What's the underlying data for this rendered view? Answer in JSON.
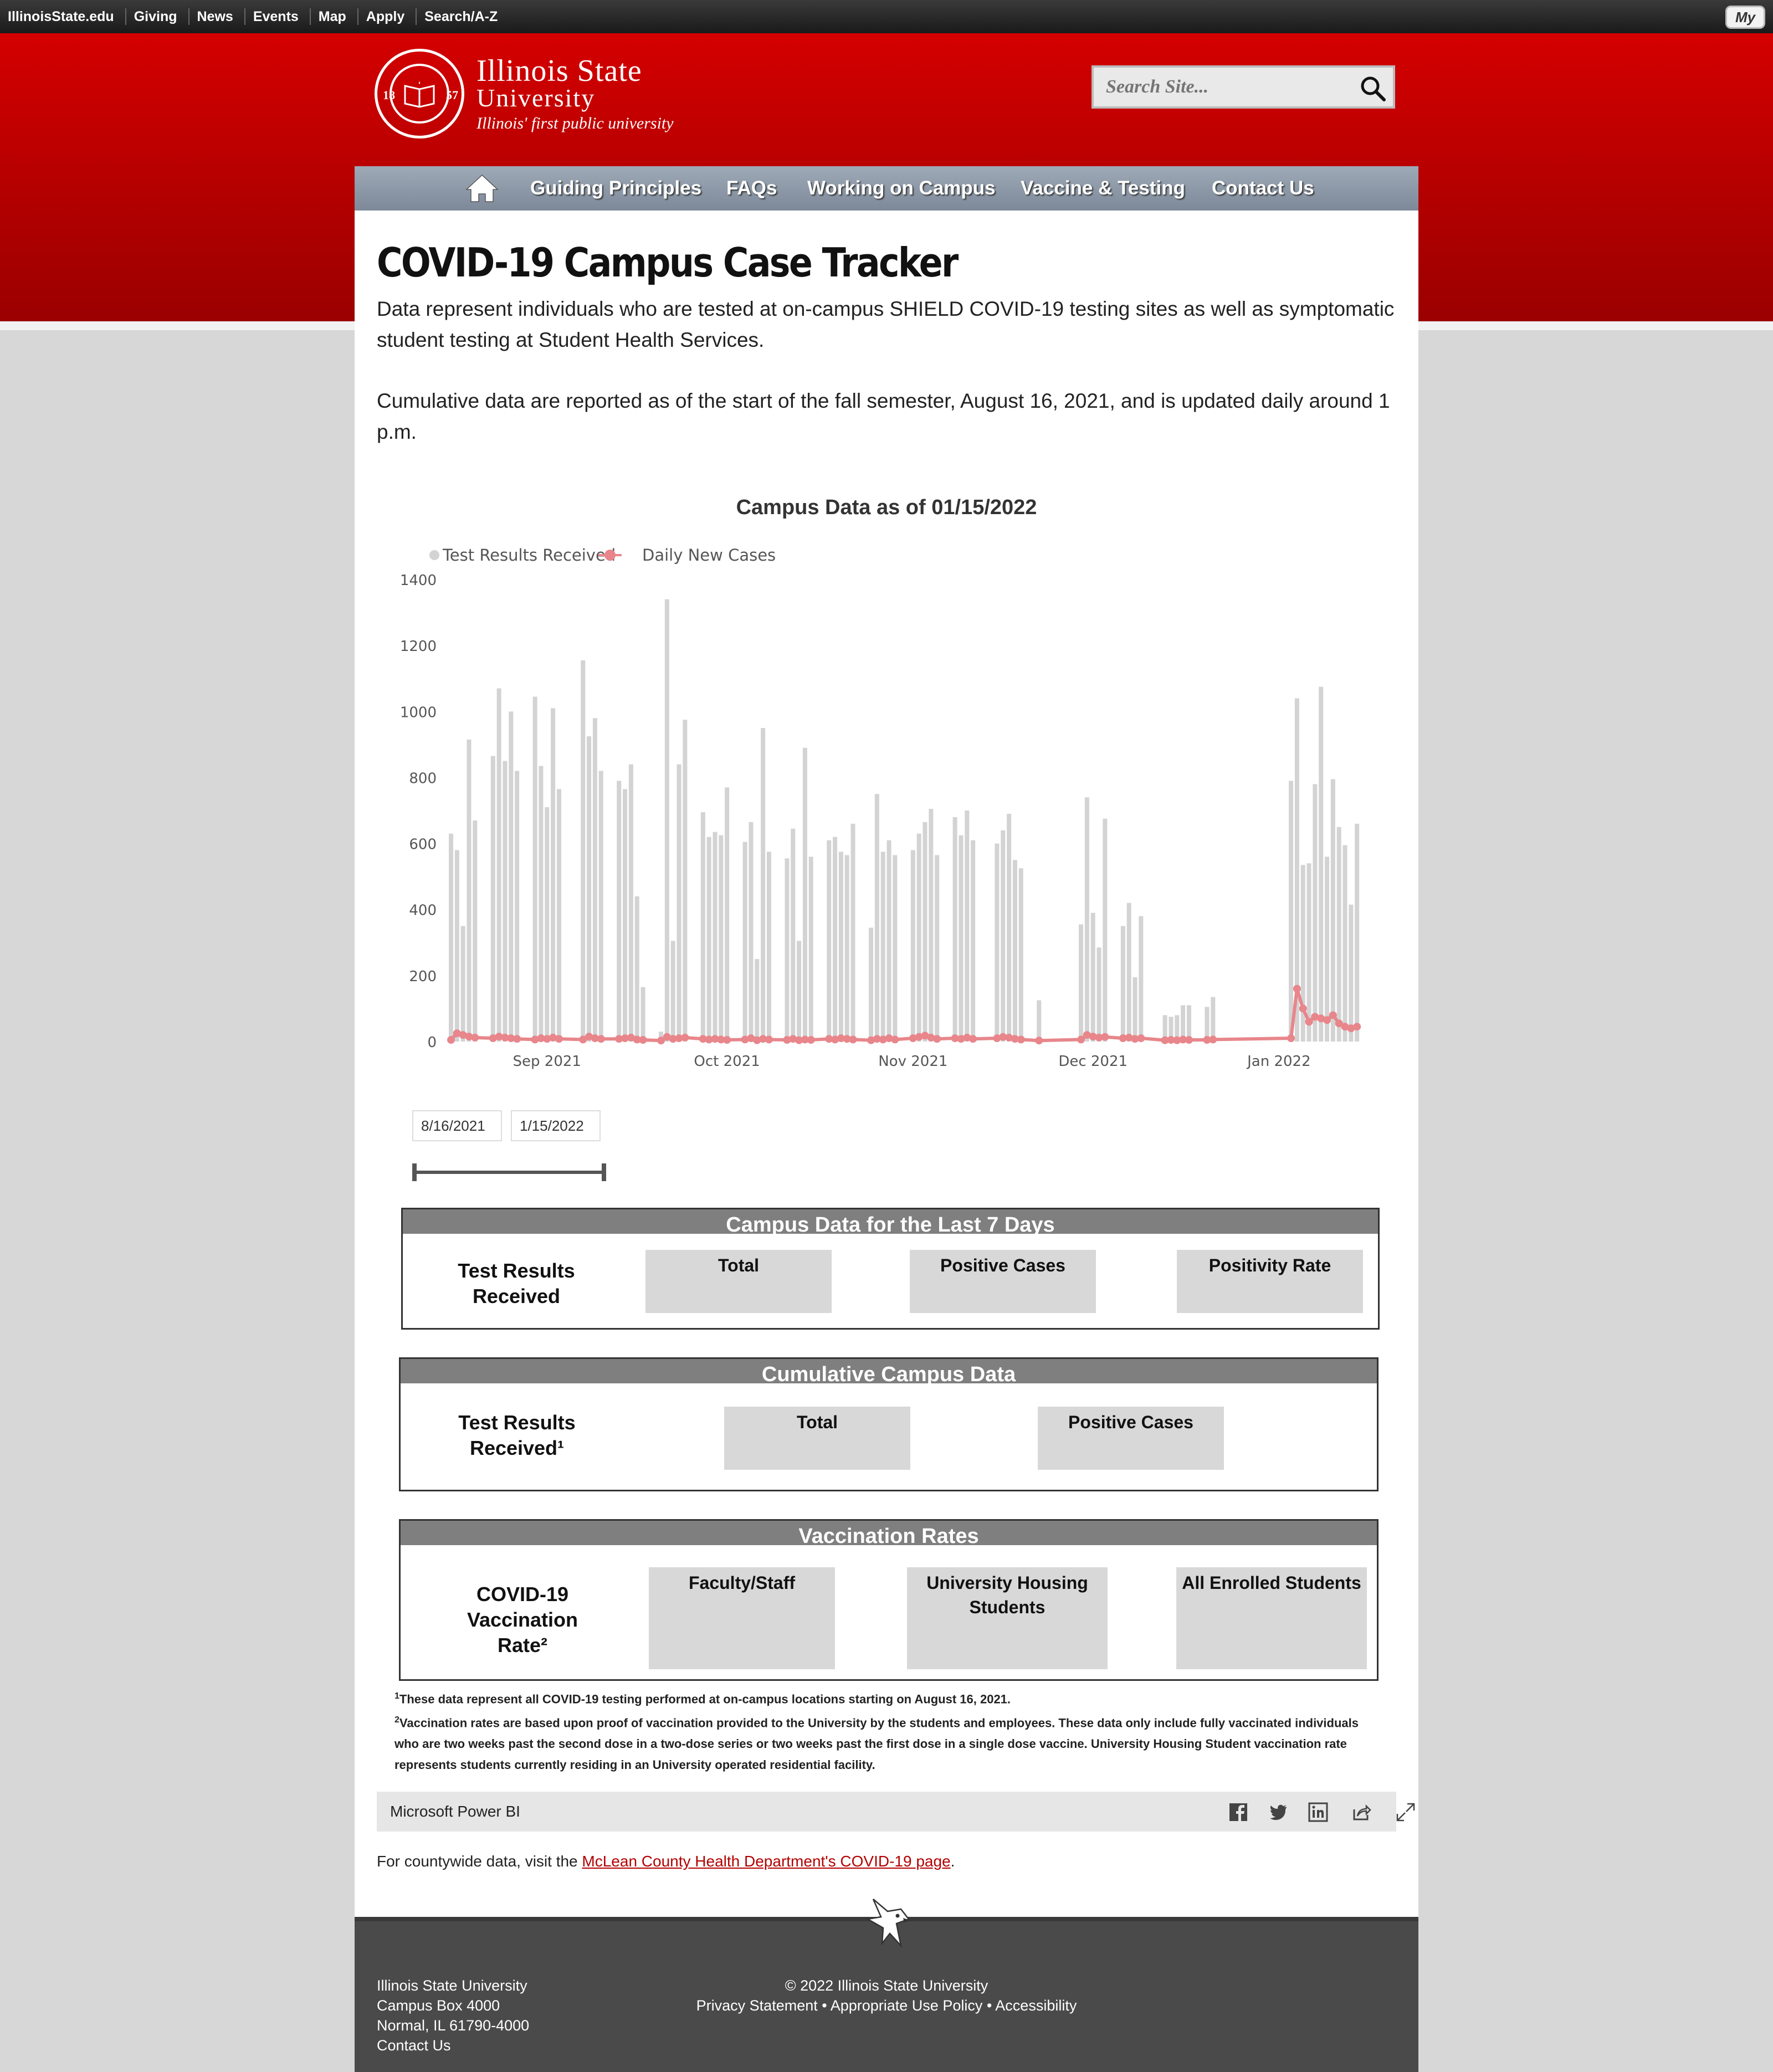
{
  "topbar": {
    "links": [
      "IllinoisState.edu",
      "Giving",
      "News",
      "Events",
      "Map",
      "Apply",
      "Search/A-Z"
    ],
    "my_label": "My"
  },
  "header": {
    "seal_years": [
      "18",
      "57"
    ],
    "university_line1": "Illinois State",
    "university_line2": "University",
    "tagline": "Illinois' first public university",
    "search_placeholder": "Search Site..."
  },
  "nav": {
    "items": [
      "Guiding Principles",
      "FAQs",
      "Working on Campus",
      "Vaccine & Testing",
      "Contact Us"
    ]
  },
  "page": {
    "title": "COVID-19 Campus Case Tracker",
    "para1": "Data represent individuals who are tested at on-campus SHIELD COVID-19 testing sites as well as symptomatic student testing at Student Health Services.",
    "para2": "Cumulative data are reported as of the start of the fall semester, August 16, 2021, and is updated daily around 1 p.m."
  },
  "chart_data": {
    "type": "bar",
    "title": "Campus Data as of 01/15/2022",
    "legend": [
      {
        "name": "Test Results Received",
        "color": "#d3d3d3",
        "marker": "dot"
      },
      {
        "name": "Daily New Cases",
        "color": "#e8868b",
        "marker": "line-dot"
      }
    ],
    "legend_position": "top-left",
    "ylim": [
      0,
      1400
    ],
    "yticks": [
      0,
      200,
      400,
      600,
      800,
      1000,
      1200,
      1400
    ],
    "xrange": [
      "2021-08-16",
      "2022-01-15"
    ],
    "xticks": [
      {
        "label": "Sep 2021",
        "date": "2021-09-01"
      },
      {
        "label": "Oct 2021",
        "date": "2021-10-01"
      },
      {
        "label": "Nov 2021",
        "date": "2021-11-01"
      },
      {
        "label": "Dec 2021",
        "date": "2021-12-01"
      },
      {
        "label": "Jan 2022",
        "date": "2022-01-01"
      }
    ],
    "series": [
      {
        "name": "Test Results Received",
        "kind": "bar",
        "color": "#d3d3d3",
        "points": [
          [
            "2021-08-16",
            630
          ],
          [
            "2021-08-17",
            580
          ],
          [
            "2021-08-18",
            350
          ],
          [
            "2021-08-19",
            915
          ],
          [
            "2021-08-20",
            670
          ],
          [
            "2021-08-23",
            865
          ],
          [
            "2021-08-24",
            1070
          ],
          [
            "2021-08-25",
            850
          ],
          [
            "2021-08-26",
            1000
          ],
          [
            "2021-08-27",
            820
          ],
          [
            "2021-08-30",
            1045
          ],
          [
            "2021-08-31",
            835
          ],
          [
            "2021-09-01",
            710
          ],
          [
            "2021-09-02",
            1010
          ],
          [
            "2021-09-03",
            765
          ],
          [
            "2021-09-07",
            1155
          ],
          [
            "2021-09-08",
            925
          ],
          [
            "2021-09-09",
            980
          ],
          [
            "2021-09-10",
            820
          ],
          [
            "2021-09-13",
            790
          ],
          [
            "2021-09-14",
            765
          ],
          [
            "2021-09-15",
            840
          ],
          [
            "2021-09-16",
            440
          ],
          [
            "2021-09-17",
            165
          ],
          [
            "2021-09-20",
            30
          ],
          [
            "2021-09-21",
            1340
          ],
          [
            "2021-09-22",
            305
          ],
          [
            "2021-09-23",
            840
          ],
          [
            "2021-09-24",
            975
          ],
          [
            "2021-09-27",
            695
          ],
          [
            "2021-09-28",
            620
          ],
          [
            "2021-09-29",
            635
          ],
          [
            "2021-09-30",
            625
          ],
          [
            "2021-10-01",
            770
          ],
          [
            "2021-10-04",
            605
          ],
          [
            "2021-10-05",
            665
          ],
          [
            "2021-10-06",
            250
          ],
          [
            "2021-10-07",
            950
          ],
          [
            "2021-10-08",
            575
          ],
          [
            "2021-10-11",
            555
          ],
          [
            "2021-10-12",
            645
          ],
          [
            "2021-10-13",
            305
          ],
          [
            "2021-10-14",
            890
          ],
          [
            "2021-10-15",
            560
          ],
          [
            "2021-10-18",
            610
          ],
          [
            "2021-10-19",
            620
          ],
          [
            "2021-10-20",
            575
          ],
          [
            "2021-10-21",
            565
          ],
          [
            "2021-10-22",
            660
          ],
          [
            "2021-10-25",
            345
          ],
          [
            "2021-10-26",
            750
          ],
          [
            "2021-10-27",
            575
          ],
          [
            "2021-10-28",
            610
          ],
          [
            "2021-10-29",
            565
          ],
          [
            "2021-11-01",
            580
          ],
          [
            "2021-11-02",
            630
          ],
          [
            "2021-11-03",
            665
          ],
          [
            "2021-11-04",
            705
          ],
          [
            "2021-11-05",
            565
          ],
          [
            "2021-11-08",
            680
          ],
          [
            "2021-11-09",
            625
          ],
          [
            "2021-11-10",
            700
          ],
          [
            "2021-11-11",
            610
          ],
          [
            "2021-11-15",
            600
          ],
          [
            "2021-11-16",
            640
          ],
          [
            "2021-11-17",
            690
          ],
          [
            "2021-11-18",
            550
          ],
          [
            "2021-11-19",
            525
          ],
          [
            "2021-11-22",
            125
          ],
          [
            "2021-11-29",
            355
          ],
          [
            "2021-11-30",
            740
          ],
          [
            "2021-12-01",
            390
          ],
          [
            "2021-12-02",
            285
          ],
          [
            "2021-12-03",
            675
          ],
          [
            "2021-12-06",
            350
          ],
          [
            "2021-12-07",
            420
          ],
          [
            "2021-12-08",
            195
          ],
          [
            "2021-12-09",
            380
          ],
          [
            "2021-12-13",
            80
          ],
          [
            "2021-12-14",
            75
          ],
          [
            "2021-12-15",
            80
          ],
          [
            "2021-12-16",
            110
          ],
          [
            "2021-12-17",
            110
          ],
          [
            "2021-12-20",
            105
          ],
          [
            "2021-12-21",
            135
          ],
          [
            "2022-01-03",
            790
          ],
          [
            "2022-01-04",
            1040
          ],
          [
            "2022-01-05",
            535
          ],
          [
            "2022-01-06",
            540
          ],
          [
            "2022-01-07",
            780
          ],
          [
            "2022-01-08",
            1075
          ],
          [
            "2022-01-09",
            560
          ],
          [
            "2022-01-10",
            795
          ],
          [
            "2022-01-11",
            650
          ],
          [
            "2022-01-12",
            595
          ],
          [
            "2022-01-13",
            415
          ],
          [
            "2022-01-14",
            660
          ]
        ]
      },
      {
        "name": "Daily New Cases",
        "kind": "line",
        "color": "#e8868b",
        "points": [
          [
            "2021-08-16",
            5
          ],
          [
            "2021-08-17",
            25
          ],
          [
            "2021-08-18",
            20
          ],
          [
            "2021-08-19",
            15
          ],
          [
            "2021-08-20",
            12
          ],
          [
            "2021-08-23",
            10
          ],
          [
            "2021-08-24",
            15
          ],
          [
            "2021-08-25",
            12
          ],
          [
            "2021-08-26",
            10
          ],
          [
            "2021-08-27",
            8
          ],
          [
            "2021-08-30",
            6
          ],
          [
            "2021-08-31",
            10
          ],
          [
            "2021-09-01",
            8
          ],
          [
            "2021-09-02",
            12
          ],
          [
            "2021-09-03",
            8
          ],
          [
            "2021-09-07",
            6
          ],
          [
            "2021-09-08",
            15
          ],
          [
            "2021-09-09",
            10
          ],
          [
            "2021-09-10",
            8
          ],
          [
            "2021-09-13",
            8
          ],
          [
            "2021-09-14",
            10
          ],
          [
            "2021-09-15",
            12
          ],
          [
            "2021-09-16",
            6
          ],
          [
            "2021-09-17",
            5
          ],
          [
            "2021-09-20",
            3
          ],
          [
            "2021-09-21",
            14
          ],
          [
            "2021-09-22",
            8
          ],
          [
            "2021-09-23",
            10
          ],
          [
            "2021-09-24",
            12
          ],
          [
            "2021-09-27",
            8
          ],
          [
            "2021-09-28",
            6
          ],
          [
            "2021-09-29",
            8
          ],
          [
            "2021-09-30",
            6
          ],
          [
            "2021-10-01",
            5
          ],
          [
            "2021-10-04",
            6
          ],
          [
            "2021-10-05",
            10
          ],
          [
            "2021-10-06",
            4
          ],
          [
            "2021-10-07",
            8
          ],
          [
            "2021-10-08",
            6
          ],
          [
            "2021-10-11",
            5
          ],
          [
            "2021-10-12",
            8
          ],
          [
            "2021-10-13",
            4
          ],
          [
            "2021-10-14",
            6
          ],
          [
            "2021-10-15",
            5
          ],
          [
            "2021-10-18",
            8
          ],
          [
            "2021-10-19",
            6
          ],
          [
            "2021-10-20",
            10
          ],
          [
            "2021-10-21",
            8
          ],
          [
            "2021-10-22",
            6
          ],
          [
            "2021-10-25",
            4
          ],
          [
            "2021-10-26",
            8
          ],
          [
            "2021-10-27",
            6
          ],
          [
            "2021-10-28",
            10
          ],
          [
            "2021-10-29",
            6
          ],
          [
            "2021-11-01",
            10
          ],
          [
            "2021-11-02",
            14
          ],
          [
            "2021-11-03",
            18
          ],
          [
            "2021-11-04",
            12
          ],
          [
            "2021-11-05",
            8
          ],
          [
            "2021-11-08",
            10
          ],
          [
            "2021-11-09",
            8
          ],
          [
            "2021-11-10",
            12
          ],
          [
            "2021-11-11",
            8
          ],
          [
            "2021-11-15",
            10
          ],
          [
            "2021-11-16",
            14
          ],
          [
            "2021-11-17",
            12
          ],
          [
            "2021-11-18",
            8
          ],
          [
            "2021-11-19",
            6
          ],
          [
            "2021-11-22",
            3
          ],
          [
            "2021-11-29",
            6
          ],
          [
            "2021-11-30",
            20
          ],
          [
            "2021-12-01",
            15
          ],
          [
            "2021-12-02",
            12
          ],
          [
            "2021-12-03",
            14
          ],
          [
            "2021-12-06",
            10
          ],
          [
            "2021-12-07",
            12
          ],
          [
            "2021-12-08",
            8
          ],
          [
            "2021-12-09",
            10
          ],
          [
            "2021-12-13",
            4
          ],
          [
            "2021-12-14",
            5
          ],
          [
            "2021-12-15",
            4
          ],
          [
            "2021-12-16",
            6
          ],
          [
            "2021-12-17",
            5
          ],
          [
            "2021-12-20",
            5
          ],
          [
            "2021-12-21",
            6
          ],
          [
            "2022-01-03",
            10
          ],
          [
            "2022-01-04",
            160
          ],
          [
            "2022-01-05",
            100
          ],
          [
            "2022-01-06",
            60
          ],
          [
            "2022-01-07",
            75
          ],
          [
            "2022-01-08",
            70
          ],
          [
            "2022-01-09",
            65
          ],
          [
            "2022-01-10",
            80
          ],
          [
            "2022-01-11",
            55
          ],
          [
            "2022-01-12",
            45
          ],
          [
            "2022-01-13",
            40
          ],
          [
            "2022-01-14",
            45
          ]
        ]
      }
    ]
  },
  "date_range": {
    "start": "8/16/2021",
    "end": "1/15/2022"
  },
  "tables": {
    "last7": {
      "header": "Campus Data for the Last 7 Days",
      "row_label": "Test Results Received",
      "cells": [
        "Total",
        "Positive Cases",
        "Positivity Rate"
      ]
    },
    "cumulative": {
      "header": "Cumulative Campus Data",
      "row_label": "Test Results Received¹",
      "cells": [
        "Total",
        "Positive Cases"
      ]
    },
    "vaccination": {
      "header": "Vaccination Rates",
      "row_label": "COVID-19 Vaccination Rate²",
      "cells": [
        "Faculty/Staff",
        "University Housing Students",
        "All Enrolled Students"
      ]
    }
  },
  "footnotes": {
    "fn1_mark": "1",
    "fn1": "These data represent all COVID-19 testing performed at on-campus locations starting on August 16, 2021.",
    "fn2_mark": "2",
    "fn2": "Vaccination rates are based upon proof of vaccination provided to the University by the students and employees. These data only include fully vaccinated individuals who are two weeks past the second dose in a two-dose series or two weeks past the first dose in a single dose vaccine.  University Housing Student vaccination rate represents students currently residing in an University operated residential facility."
  },
  "powerbi": {
    "label": "Microsoft Power BI",
    "icons": [
      "facebook-icon",
      "twitter-icon",
      "linkedin-icon",
      "share-icon",
      "expand-icon"
    ]
  },
  "county": {
    "prefix": "For countywide data, visit the ",
    "link_text": "McLean County Health Department's COVID-19 page",
    "suffix": "."
  },
  "footer": {
    "address": [
      "Illinois State University",
      "Campus Box 4000",
      "Normal, IL 61790-4000",
      "Contact Us"
    ],
    "copyright": "© 2022 Illinois State University",
    "links": "Privacy Statement • Appropriate Use Policy • Accessibility"
  },
  "colors": {
    "brand_red": "#c8000a",
    "nav_gray": "#8a96a5",
    "panel_header": "#7f7f7f",
    "cell_gray": "#d8d8d8",
    "bar_gray": "#d3d3d3",
    "line_pink": "#e8868b"
  }
}
